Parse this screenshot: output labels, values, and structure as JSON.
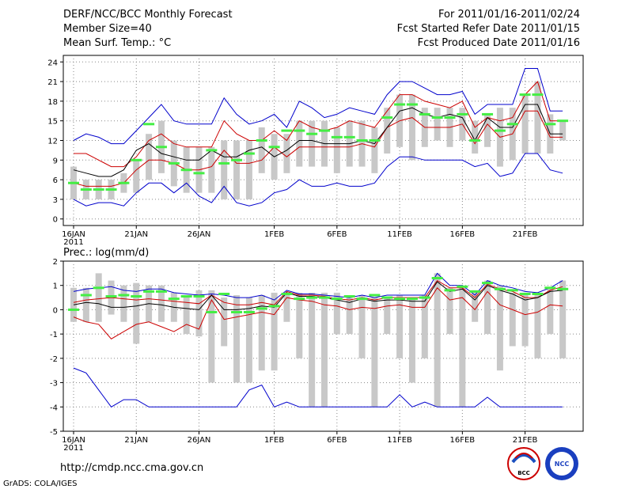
{
  "header": {
    "title": "DERF/NCC/BCC Monthly Forecast",
    "member_size": "Member Size=40",
    "variable": "Mean Surf. Temp.: °C",
    "period": "For 2011/01/16-2011/02/24",
    "started": "Fcst Started Refer Date 2011/01/15",
    "produced": "Fcst Produced Date 2011/01/16"
  },
  "footer": {
    "url": "http://cmdp.ncc.cma.gov.cn",
    "credit": "GrADS: COLA/IGES",
    "logo_left_text": "BCC",
    "logo_right_text": "NCC"
  },
  "colors": {
    "envelope": "#0000cc",
    "quartile": "#cc0000",
    "mean": "#000000",
    "median": "#44ee44",
    "box": "#c8c8c8",
    "grid": "#888888"
  },
  "chart_data": [
    {
      "type": "box",
      "title": "Mean Surf. Temp.: °C",
      "ylim": [
        -1,
        25
      ],
      "yticks": [
        0,
        3,
        6,
        9,
        12,
        15,
        18,
        21,
        24
      ],
      "xtick_labels": [
        "16JAN",
        "21JAN",
        "26JAN",
        "1FEB",
        "6FEB",
        "11FEB",
        "16FEB",
        "21FEB"
      ],
      "xtick_days": [
        0,
        5,
        10,
        16,
        21,
        26,
        31,
        36
      ],
      "year_label": "2011",
      "days": 40,
      "series": [
        {
          "name": "max",
          "values": [
            12,
            13,
            12.5,
            11.5,
            11.5,
            13.5,
            15.5,
            17.5,
            15,
            14.5,
            14.5,
            14.5,
            18.5,
            16,
            14.5,
            15,
            16,
            14,
            18,
            17,
            15.5,
            16,
            17,
            16.5,
            16,
            19,
            21,
            21,
            20,
            19,
            19,
            19.5,
            16,
            17.5,
            17.5,
            17.5,
            23,
            23,
            16.5,
            16.5
          ]
        },
        {
          "name": "upper_quartile",
          "values": [
            10,
            10,
            9,
            8,
            8,
            9.5,
            12,
            13,
            11.5,
            11,
            11,
            11,
            15,
            13,
            12,
            12,
            13.5,
            12,
            15,
            14,
            13.5,
            14,
            15,
            14.5,
            14,
            16.5,
            19,
            19,
            18,
            17.5,
            17,
            18,
            14,
            15.5,
            15,
            15.5,
            19,
            21,
            15,
            15
          ]
        },
        {
          "name": "mean",
          "values": [
            7.5,
            7,
            6.5,
            6.5,
            7.5,
            10.5,
            11.5,
            10,
            9.5,
            9,
            9,
            10.5,
            9.5,
            9.5,
            10.5,
            11,
            9.5,
            10.5,
            12,
            12,
            11.5,
            11.5,
            11.5,
            12,
            11.5,
            14,
            16.5,
            17,
            16,
            15.5,
            16,
            15.5,
            12,
            15.5,
            14,
            14,
            17.5,
            17.5,
            13,
            13
          ]
        },
        {
          "name": "lower_quartile",
          "values": [
            5.5,
            5,
            5,
            5,
            5.5,
            7.5,
            9,
            9,
            8.5,
            7.5,
            7.5,
            8,
            10.5,
            8.5,
            8.5,
            9,
            11,
            9.5,
            11,
            11,
            11,
            11,
            11,
            11.5,
            11,
            14,
            15,
            15.5,
            14,
            14,
            14,
            14.5,
            11.5,
            14.5,
            12.5,
            13,
            16.5,
            16.5,
            12.5,
            12.5
          ]
        },
        {
          "name": "min",
          "values": [
            3,
            2,
            2.5,
            2.5,
            2,
            4,
            5.5,
            5.5,
            4,
            5.5,
            3.5,
            2.5,
            5,
            2.5,
            2,
            2.5,
            4,
            4.5,
            6,
            5,
            5,
            5.5,
            5,
            5,
            5.5,
            8,
            9.5,
            9.5,
            9,
            9,
            9,
            9,
            8,
            8.5,
            6.5,
            7,
            10,
            10,
            7.5,
            7
          ]
        },
        {
          "name": "box_low",
          "values": [
            3,
            3,
            3,
            3,
            4,
            4,
            6,
            7,
            5,
            4,
            4,
            4,
            3,
            3,
            3,
            7,
            6,
            7,
            8,
            8,
            8,
            7,
            8,
            8,
            7,
            10,
            11,
            9,
            11,
            12,
            11,
            12,
            10,
            11,
            8,
            9,
            10,
            10,
            10,
            12
          ]
        },
        {
          "name": "box_high",
          "values": [
            8,
            6,
            6,
            6,
            7,
            9,
            13,
            15,
            12,
            11,
            11,
            11,
            12,
            12,
            12,
            14,
            13,
            13,
            15,
            15,
            15,
            14,
            15,
            15,
            14,
            17,
            19,
            19,
            17,
            17,
            17,
            17,
            15,
            16,
            17,
            17,
            19,
            21,
            16,
            15
          ]
        },
        {
          "name": "median",
          "values": [
            5.5,
            4.5,
            4.5,
            4.5,
            5.5,
            9,
            14.5,
            11,
            8.5,
            7.5,
            7,
            10.5,
            8.5,
            9,
            10,
            12,
            11,
            13.5,
            13.5,
            13,
            13.5,
            12.5,
            12.5,
            12,
            12,
            15.5,
            17.5,
            17.5,
            16,
            15.5,
            15.5,
            16,
            12,
            16,
            13.5,
            14.5,
            19,
            19,
            14.5,
            15
          ]
        }
      ]
    },
    {
      "type": "box",
      "title": "Prec.: log(mm/d)",
      "ylim": [
        -5,
        2
      ],
      "yticks": [
        -5,
        -4,
        -3,
        -2,
        -1,
        0,
        1,
        2
      ],
      "xtick_labels": [
        "16JAN",
        "21JAN",
        "26JAN",
        "1FEB",
        "6FEB",
        "11FEB",
        "16FEB",
        "21FEB"
      ],
      "xtick_days": [
        0,
        5,
        10,
        16,
        21,
        26,
        31,
        36
      ],
      "year_label": "2011",
      "days": 40,
      "series": [
        {
          "name": "max",
          "values": [
            0.75,
            0.85,
            0.9,
            0.95,
            0.8,
            0.75,
            0.85,
            0.85,
            0.7,
            0.65,
            0.6,
            0.65,
            0.6,
            0.5,
            0.5,
            0.6,
            0.4,
            0.8,
            0.65,
            0.65,
            0.6,
            0.55,
            0.5,
            0.6,
            0.5,
            0.6,
            0.6,
            0.6,
            0.6,
            1.5,
            1.0,
            1.0,
            0.6,
            1.2,
            1.0,
            0.9,
            0.75,
            0.7,
            0.9,
            1.2
          ]
        },
        {
          "name": "upper_quartile",
          "values": [
            0.3,
            0.4,
            0.45,
            0.5,
            0.45,
            0.4,
            0.45,
            0.4,
            0.35,
            0.3,
            0.25,
            0.6,
            0.3,
            0.2,
            0.2,
            0.3,
            0.2,
            0.75,
            0.6,
            0.6,
            0.55,
            0.45,
            0.4,
            0.5,
            0.4,
            0.5,
            0.5,
            0.5,
            0.5,
            1.2,
            0.9,
            0.9,
            0.5,
            1.05,
            0.85,
            0.75,
            0.5,
            0.5,
            0.8,
            0.95
          ]
        },
        {
          "name": "mean",
          "values": [
            0.2,
            0.3,
            0.25,
            0.1,
            0.1,
            0.15,
            0.25,
            0.2,
            0.1,
            0.05,
            0.0,
            0.6,
            0.0,
            0.0,
            0.05,
            0.15,
            0.1,
            0.7,
            0.55,
            0.55,
            0.5,
            0.4,
            0.3,
            0.45,
            0.35,
            0.4,
            0.4,
            0.35,
            0.35,
            1.15,
            0.75,
            0.85,
            0.4,
            1.0,
            0.8,
            0.65,
            0.4,
            0.5,
            0.75,
            0.8
          ]
        },
        {
          "name": "lower_quartile",
          "values": [
            -0.3,
            -0.5,
            -0.6,
            -1.2,
            -0.9,
            -0.6,
            -0.5,
            -0.7,
            -0.9,
            -0.6,
            -0.8,
            0.4,
            -0.4,
            -0.3,
            -0.2,
            -0.1,
            -0.2,
            0.5,
            0.4,
            0.35,
            0.2,
            0.15,
            0.0,
            0.1,
            0.05,
            0.15,
            0.2,
            0.1,
            0.1,
            0.9,
            0.4,
            0.5,
            0.0,
            0.75,
            0.2,
            0.0,
            -0.2,
            -0.1,
            0.2,
            0.15
          ]
        },
        {
          "name": "min",
          "values": [
            -2.4,
            -2.6,
            -3.3,
            -4.0,
            -3.7,
            -3.7,
            -4.0,
            -4.0,
            -4.0,
            -4.0,
            -4.0,
            -4.0,
            -4.0,
            -4.0,
            -3.3,
            -3.1,
            -4.0,
            -3.8,
            -4.0,
            -4.0,
            -4.0,
            -4.0,
            -4.0,
            -4.0,
            -4.0,
            -4.0,
            -3.5,
            -4.0,
            -3.8,
            -4.0,
            -4.0,
            -4.0,
            -4.0,
            -3.6,
            -4.0,
            -4.0,
            -4.0,
            -4.0,
            -4.0,
            -4.0
          ]
        },
        {
          "name": "box_low",
          "values": [
            -0.5,
            -0.5,
            -0.5,
            -0.2,
            -0.5,
            -1.4,
            -0.5,
            -0.5,
            -0.5,
            -1.0,
            -1.1,
            -3.0,
            -1.5,
            -3.0,
            -3.0,
            -2.5,
            -2.5,
            -0.5,
            -2.0,
            -4.0,
            -4.0,
            -1.0,
            -1.0,
            -2.0,
            -4.0,
            -1.0,
            -2.0,
            -3.0,
            -2.0,
            -4.0,
            -1.0,
            -4.0,
            -0.5,
            -1.0,
            -2.5,
            -1.5,
            -1.5,
            -2.0,
            -1.0,
            -2.0
          ]
        },
        {
          "name": "box_high",
          "values": [
            0.9,
            0.9,
            1.5,
            1.2,
            1.0,
            1.1,
            1.0,
            1.0,
            0.7,
            0.6,
            0.8,
            0.8,
            0.5,
            0.6,
            0.5,
            0.6,
            0.7,
            0.6,
            0.7,
            0.7,
            0.7,
            0.7,
            0.5,
            0.6,
            0.5,
            0.5,
            0.6,
            0.5,
            0.6,
            1.5,
            0.9,
            0.9,
            0.8,
            1.2,
            1.0,
            0.7,
            0.7,
            0.7,
            0.9,
            1.2
          ]
        },
        {
          "name": "median",
          "values": [
            0.0,
            0.6,
            0.9,
            0.55,
            0.6,
            0.55,
            0.75,
            0.75,
            0.45,
            0.55,
            0.55,
            -0.1,
            0.65,
            -0.1,
            -0.1,
            0.05,
            0.15,
            0.65,
            0.45,
            0.5,
            0.5,
            0.45,
            0.55,
            0.45,
            0.6,
            0.5,
            0.45,
            0.45,
            0.5,
            1.3,
            0.8,
            0.95,
            0.75,
            1.1,
            0.85,
            0.8,
            0.65,
            0.65,
            0.9,
            0.85
          ]
        }
      ]
    }
  ]
}
